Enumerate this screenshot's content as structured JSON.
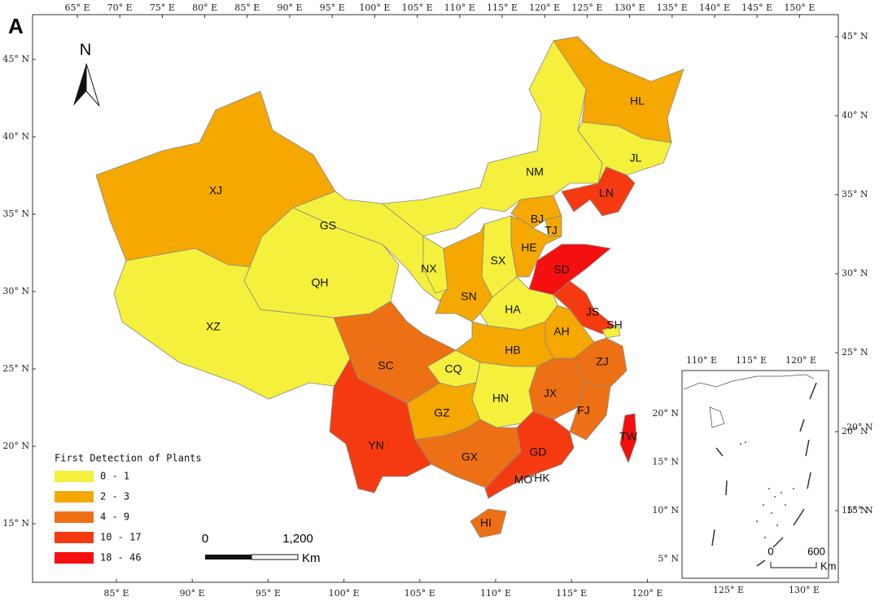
{
  "panel_label": "A",
  "north_label": "N",
  "top_ticks": [
    "65° E",
    "70° E",
    "75° E",
    "80° E",
    "85° E",
    "90° E",
    "95° E",
    "100° E",
    "105° E",
    "110° E",
    "115° E",
    "120° E",
    "125° E",
    "130° E",
    "135° E",
    "140° E",
    "145° E",
    "150° E"
  ],
  "bottom_ticks": [
    "85° E",
    "90° E",
    "95° E",
    "100° E",
    "105° E",
    "110° E",
    "115° E",
    "120° E"
  ],
  "left_ticks": [
    "45° N",
    "40° N",
    "35° N",
    "30° N",
    "25° N",
    "20° N",
    "15° N"
  ],
  "right_ticks": [
    "45° N",
    "40° N",
    "35° N",
    "30° N",
    "25° N",
    "20° N",
    "15° N"
  ],
  "legend": {
    "title": "First Detection of Plants",
    "classes": [
      {
        "label": "0 - 1",
        "color": "#f5f03c"
      },
      {
        "label": "2 - 3",
        "color": "#f5a800"
      },
      {
        "label": "4 - 9",
        "color": "#ee7014"
      },
      {
        "label": "10 - 17",
        "color": "#f53a12"
      },
      {
        "label": "18 - 46",
        "color": "#f50f0f"
      }
    ]
  },
  "provinces": [
    {
      "label": "XJ",
      "class": 1
    },
    {
      "label": "XZ",
      "class": 0
    },
    {
      "label": "QH",
      "class": 0
    },
    {
      "label": "GS",
      "class": 0
    },
    {
      "label": "NM",
      "class": 0
    },
    {
      "label": "HL",
      "class": 1
    },
    {
      "label": "JL",
      "class": 0
    },
    {
      "label": "LN",
      "class": 3
    },
    {
      "label": "BJ",
      "class": 1
    },
    {
      "label": "TJ",
      "class": 1
    },
    {
      "label": "HE",
      "class": 1
    },
    {
      "label": "SX",
      "class": 0
    },
    {
      "label": "NX",
      "class": 0
    },
    {
      "label": "SN",
      "class": 1
    },
    {
      "label": "SD",
      "class": 4
    },
    {
      "label": "HA",
      "class": 0
    },
    {
      "label": "JS",
      "class": 3
    },
    {
      "label": "SH",
      "class": 0
    },
    {
      "label": "AH",
      "class": 1
    },
    {
      "label": "HB",
      "class": 1
    },
    {
      "label": "ZJ",
      "class": 2
    },
    {
      "label": "JX",
      "class": 2
    },
    {
      "label": "FJ",
      "class": 2
    },
    {
      "label": "CQ",
      "class": 0
    },
    {
      "label": "HN",
      "class": 0
    },
    {
      "label": "GZ",
      "class": 1
    },
    {
      "label": "GX",
      "class": 2
    },
    {
      "label": "GD",
      "class": 3
    },
    {
      "label": "YN",
      "class": 3
    },
    {
      "label": "SC",
      "class": 2
    },
    {
      "label": "TW",
      "class": 4
    },
    {
      "label": "HI",
      "class": 2
    },
    {
      "label": "MO",
      "class": 3
    },
    {
      "label": "HK",
      "class": 3
    }
  ],
  "scale_bar": {
    "start": "0",
    "end": "1,200",
    "unit": "Km"
  },
  "inset": {
    "top_ticks": [
      "110° E",
      "115° E",
      "120° E"
    ],
    "bottom_ticks": [
      "125° E",
      "130° E"
    ],
    "left_ticks": [
      "20° N",
      "15° N",
      "10° N",
      "5° N"
    ],
    "right_ticks": [
      "20° N",
      "15° N"
    ],
    "scale_bar": {
      "start": "0",
      "end": "600",
      "unit": "Km"
    }
  }
}
